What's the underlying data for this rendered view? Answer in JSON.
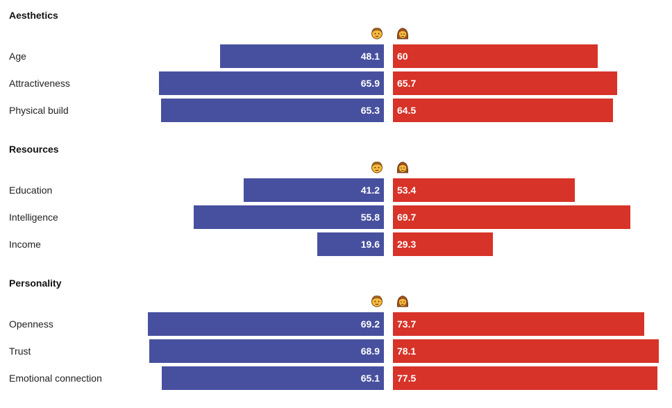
{
  "colors": {
    "male": "#47509e",
    "female": "#d73328"
  },
  "icons": {
    "male": "man-emoji-icon",
    "female": "woman-emoji-icon"
  },
  "chart_data": {
    "type": "bar",
    "orientation": "horizontal-diverging",
    "xlim": [
      0,
      80
    ],
    "series": [
      {
        "key": "male",
        "icon": "man-emoji-icon"
      },
      {
        "key": "female",
        "icon": "woman-emoji-icon"
      }
    ],
    "groups": [
      {
        "title": "Aesthetics",
        "categories": [
          "Age",
          "Attractiveness",
          "Physical build"
        ],
        "male": [
          48.1,
          65.9,
          65.3
        ],
        "female": [
          60,
          65.7,
          64.5
        ],
        "male_labels": [
          "48.1",
          "65.9",
          "65.3"
        ],
        "female_labels": [
          "60",
          "65.7",
          "64.5"
        ]
      },
      {
        "title": "Resources",
        "categories": [
          "Education",
          "Intelligence",
          "Income"
        ],
        "male": [
          41.2,
          55.8,
          19.6
        ],
        "female": [
          53.4,
          69.7,
          29.3
        ],
        "male_labels": [
          "41.2",
          "55.8",
          "19.6"
        ],
        "female_labels": [
          "53.4",
          "69.7",
          "29.3"
        ]
      },
      {
        "title": "Personality",
        "categories": [
          "Openness",
          "Trust",
          "Emotional connection"
        ],
        "male": [
          69.2,
          68.9,
          65.1
        ],
        "female": [
          73.7,
          78.1,
          77.5
        ],
        "male_labels": [
          "69.2",
          "68.9",
          "65.1"
        ],
        "female_labels": [
          "73.7",
          "78.1",
          "77.5"
        ]
      }
    ]
  }
}
